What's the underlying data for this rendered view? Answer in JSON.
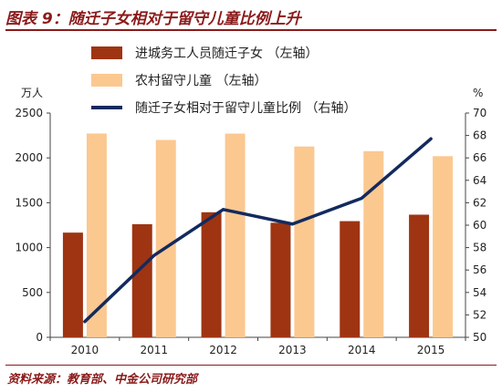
{
  "title": "图表 9：随迁子女相对于留守儿童比例上升",
  "source": "资料来源：教育部、中金公司研究部",
  "colors": {
    "migrant_bar": "#9E3412",
    "left_behind_bar": "#FBC890",
    "ratio_line": "#132A5E",
    "title_red": "#8B1A1A"
  },
  "chart_data": {
    "type": "bar",
    "categories": [
      "2010",
      "2011",
      "2012",
      "2013",
      "2014",
      "2015"
    ],
    "left_axis": {
      "unit": "万人",
      "ylim": [
        0,
        2500
      ],
      "ticks": [
        "0",
        "500",
        "1000",
        "1500",
        "2000",
        "2500"
      ]
    },
    "right_axis": {
      "unit": "%",
      "ylim": [
        50,
        70
      ],
      "ticks": [
        "50",
        "52",
        "54",
        "56",
        "58",
        "60",
        "62",
        "64",
        "66",
        "68",
        "70"
      ]
    },
    "series": [
      {
        "name": "进城务工人员随迁子女 （左轴）",
        "type": "bar",
        "axis": "left",
        "values": [
          1167,
          1261,
          1394,
          1277,
          1295,
          1367
        ]
      },
      {
        "name": "农村留守儿童 （左轴）",
        "type": "bar",
        "axis": "left",
        "values": [
          2272,
          2200,
          2271,
          2127,
          2075,
          2019
        ]
      },
      {
        "name": "随迁子女相对于留守儿童比例 （右轴）",
        "type": "line",
        "axis": "right",
        "values": [
          51.4,
          57.3,
          61.4,
          60.1,
          62.4,
          67.7
        ]
      }
    ],
    "legend_position": "top",
    "grid": false
  }
}
